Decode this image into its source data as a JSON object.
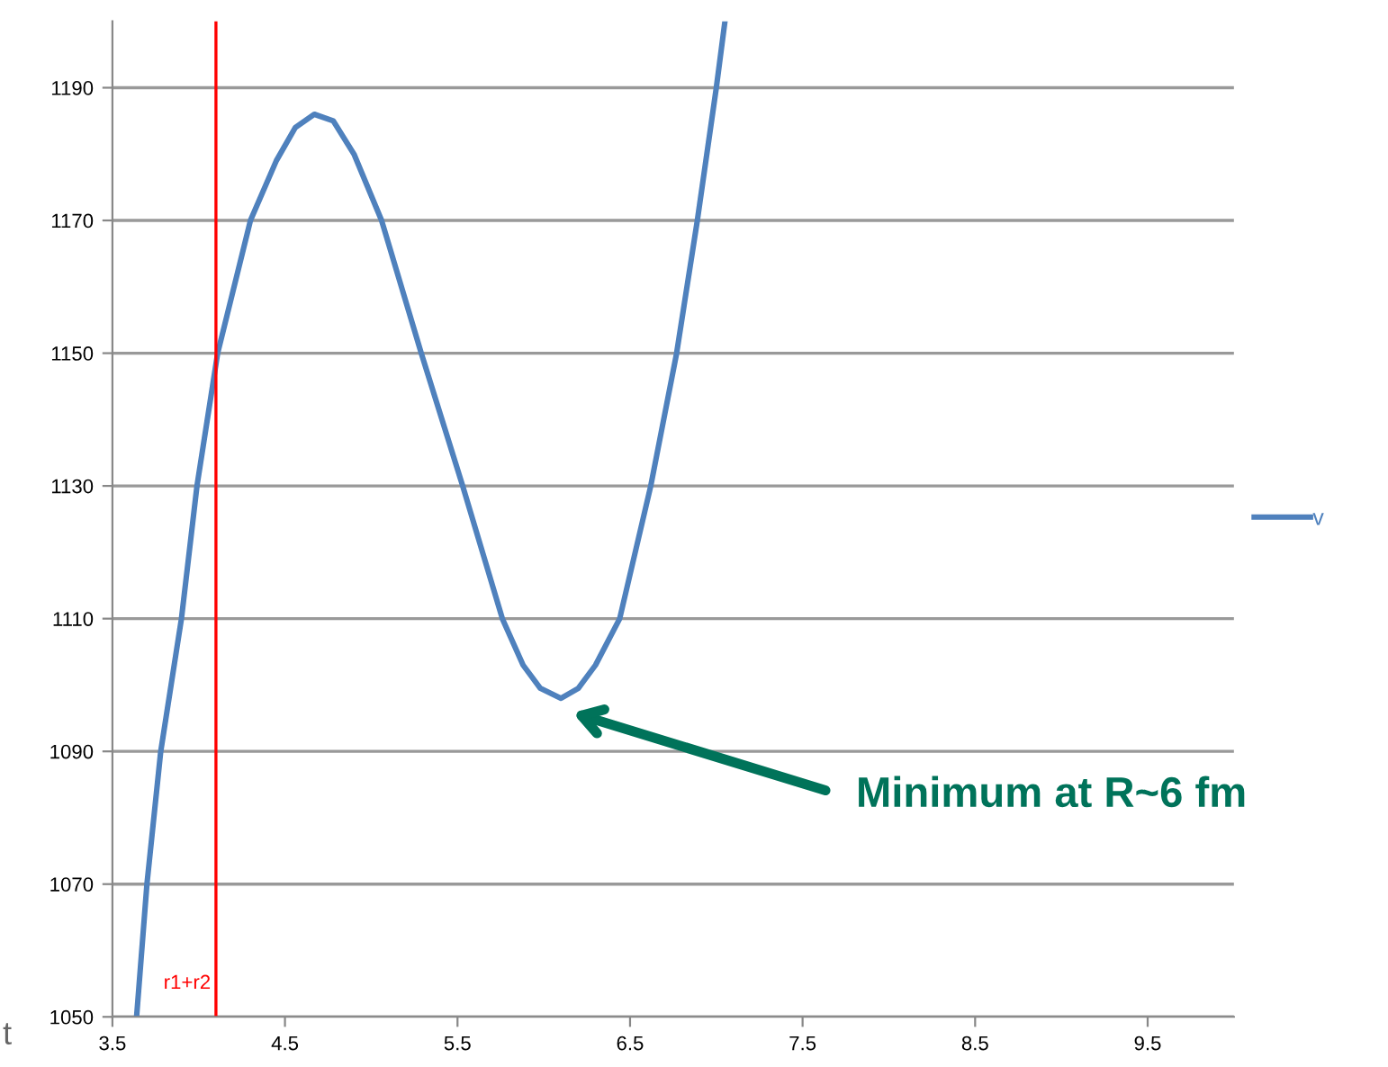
{
  "chart_data": {
    "type": "line",
    "xlim": [
      3.5,
      10
    ],
    "xticks": [
      3.5,
      4.5,
      5.5,
      6.5,
      7.5,
      8.5,
      9.5
    ],
    "ylim": [
      1050,
      1200
    ],
    "yticks": [
      1050,
      1070,
      1090,
      1110,
      1130,
      1150,
      1170,
      1190
    ],
    "grid": "y",
    "legend": "right",
    "marker": "none",
    "line_style": "solid",
    "series": [
      {
        "name": "v",
        "color": "#4f81bd",
        "x": [
          3.64,
          3.7,
          3.78,
          3.9,
          3.99,
          4.11,
          4.3,
          4.45,
          4.56,
          4.67,
          4.78,
          4.9,
          5.06,
          5.29,
          5.53,
          5.76,
          5.88,
          5.98,
          6.1,
          6.2,
          6.3,
          6.44,
          6.62,
          6.77,
          6.89,
          7.0,
          7.05
        ],
        "values": [
          1050,
          1070,
          1090,
          1110,
          1130,
          1150,
          1170,
          1179,
          1184,
          1186,
          1185,
          1180,
          1170,
          1150,
          1130,
          1110,
          1103,
          1099.5,
          1098,
          1099.5,
          1103,
          1110,
          1130,
          1150,
          1170,
          1190,
          1200
        ]
      }
    ],
    "ref_lines": [
      {
        "axis": "x",
        "value": 4.1,
        "label": "r1+r2",
        "color": "#ff0000"
      }
    ],
    "annotations": [
      "Minimum at R~6 fm",
      "t"
    ]
  }
}
